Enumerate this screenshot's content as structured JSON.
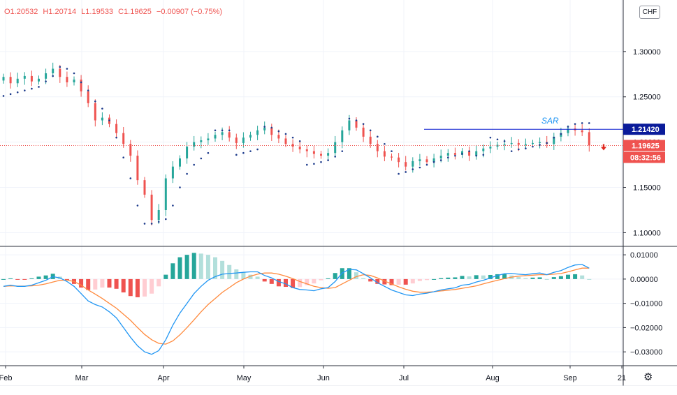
{
  "legend": {
    "open": "O1.20532",
    "high": "H1.20714",
    "low": "L1.19533",
    "close": "C1.19625",
    "change": "−0.00907 (−0.75%)"
  },
  "currency_button": "CHF",
  "settings_icon": "⚙",
  "colors": {
    "up": "#26a69a",
    "down": "#ef5350",
    "sar": "#1e3c8c",
    "line_label": "#0a1bd0",
    "macd": "#2196f3",
    "signal": "#ff8a3d",
    "hist_pos_strong": "#26a69a",
    "hist_pos_weak": "#b2dfdb",
    "hist_neg_strong": "#ef5350",
    "hist_neg_weak": "#ffcdd2"
  },
  "chart_data": [
    {
      "type": "candlestick",
      "title": "",
      "x_ticks": [
        "Feb",
        "Mar",
        "Apr",
        "May",
        "Jun",
        "Jul",
        "Aug",
        "Sep",
        "21"
      ],
      "y_ticks": [
        "1.10000",
        "1.15000",
        "1.20000",
        "1.25000",
        "1.30000"
      ],
      "ylim": [
        1.0857,
        1.3569
      ],
      "horizontal_line": {
        "value": 1.2142,
        "label": "1.21420"
      },
      "annotation": "SAR",
      "last_price": {
        "value": 1.19625,
        "label": "1.19625",
        "countdown": "08:32:56"
      },
      "closes": [
        1.272,
        1.265,
        1.27,
        1.273,
        1.267,
        1.27,
        1.276,
        1.281,
        1.272,
        1.266,
        1.269,
        1.256,
        1.243,
        1.224,
        1.227,
        1.22,
        1.21,
        1.198,
        1.185,
        1.158,
        1.142,
        1.114,
        1.125,
        1.16,
        1.173,
        1.182,
        1.195,
        1.2,
        1.202,
        1.204,
        1.208,
        1.211,
        1.205,
        1.199,
        1.205,
        1.208,
        1.213,
        1.216,
        1.208,
        1.204,
        1.198,
        1.195,
        1.192,
        1.19,
        1.187,
        1.185,
        1.188,
        1.2,
        1.213,
        1.224,
        1.216,
        1.206,
        1.198,
        1.19,
        1.184,
        1.183,
        1.178,
        1.173,
        1.179,
        1.181,
        1.178,
        1.182,
        1.185,
        1.188,
        1.186,
        1.19,
        1.185,
        1.19,
        1.193,
        1.195,
        1.197,
        1.198,
        1.199,
        1.197,
        1.198,
        1.199,
        1.2,
        1.198,
        1.206,
        1.21,
        1.215,
        1.213,
        1.211,
        1.19625
      ],
      "sar": [
        1.251,
        1.253,
        1.255,
        1.257,
        1.259,
        1.261,
        1.267,
        1.273,
        1.283,
        1.281,
        1.276,
        1.266,
        1.257,
        1.245,
        1.237,
        1.224,
        1.205,
        1.183,
        1.16,
        1.13,
        1.11,
        1.11,
        1.112,
        1.115,
        1.13,
        1.15,
        1.165,
        1.175,
        1.182,
        1.188,
        1.213,
        1.213,
        1.213,
        1.186,
        1.188,
        1.19,
        1.192,
        1.217,
        1.216,
        1.212,
        1.209,
        1.205,
        1.201,
        1.175,
        1.176,
        1.178,
        1.18,
        1.184,
        1.19,
        1.226,
        1.224,
        1.22,
        1.213,
        1.206,
        1.198,
        1.19,
        1.165,
        1.167,
        1.17,
        1.172,
        1.175,
        1.178,
        1.18,
        1.183,
        1.185,
        1.187,
        1.19,
        1.185,
        1.186,
        1.205,
        1.203,
        1.201,
        1.19,
        1.192,
        1.193,
        1.195,
        1.197,
        1.199,
        1.205,
        1.209,
        1.217,
        1.22,
        1.221,
        1.221
      ]
    },
    {
      "type": "macd",
      "title": "",
      "y_ticks": [
        "−0.03000",
        "−0.02000",
        "−0.01000",
        "0.00000",
        "0.01000"
      ],
      "ylim": [
        -0.0357,
        0.0132
      ],
      "macd": [
        -0.003,
        -0.0025,
        -0.003,
        -0.003,
        -0.0025,
        -0.0015,
        -0.0005,
        0.001,
        0.0005,
        -0.001,
        -0.003,
        -0.006,
        -0.009,
        -0.0105,
        -0.0115,
        -0.0135,
        -0.016,
        -0.02,
        -0.024,
        -0.0275,
        -0.03,
        -0.031,
        -0.0295,
        -0.025,
        -0.019,
        -0.014,
        -0.01,
        -0.006,
        -0.003,
        -0.0005,
        0.001,
        0.002,
        0.0023,
        0.0025,
        0.0028,
        0.003,
        0.003,
        0.0015,
        0.0005,
        -0.001,
        -0.002,
        -0.0035,
        -0.0043,
        -0.0045,
        -0.0048,
        -0.004,
        -0.0035,
        -0.001,
        0.0025,
        0.004,
        0.0038,
        0.0022,
        0.0005,
        -0.0015,
        -0.003,
        -0.0045,
        -0.0055,
        -0.0065,
        -0.0068,
        -0.0062,
        -0.0058,
        -0.0052,
        -0.0045,
        -0.004,
        -0.0036,
        -0.0025,
        -0.0022,
        -0.0012,
        -0.0005,
        0.0005,
        0.0015,
        0.0022,
        0.0023,
        0.002,
        0.0018,
        0.0022,
        0.0025,
        0.0018,
        0.0028,
        0.0035,
        0.0048,
        0.0058,
        0.006,
        0.0045
      ],
      "signal": [
        -0.003,
        -0.0028,
        -0.0029,
        -0.0029,
        -0.0028,
        -0.0025,
        -0.002,
        -0.0012,
        -0.0005,
        -0.0004,
        -0.001,
        -0.0025,
        -0.0045,
        -0.0062,
        -0.008,
        -0.01,
        -0.012,
        -0.0145,
        -0.017,
        -0.02,
        -0.0228,
        -0.025,
        -0.0265,
        -0.0268,
        -0.0255,
        -0.023,
        -0.02,
        -0.0168,
        -0.0135,
        -0.0105,
        -0.008,
        -0.0055,
        -0.0035,
        -0.0015,
        0.0,
        0.0012,
        0.002,
        0.0025,
        0.0025,
        0.002,
        0.0012,
        0.0002,
        -0.001,
        -0.002,
        -0.003,
        -0.0035,
        -0.0038,
        -0.0035,
        -0.002,
        -0.0005,
        0.001,
        0.0018,
        0.0015,
        0.0005,
        -0.0008,
        -0.002,
        -0.0032,
        -0.0042,
        -0.005,
        -0.0054,
        -0.0054,
        -0.0052,
        -0.0049,
        -0.0046,
        -0.0043,
        -0.0038,
        -0.0033,
        -0.0028,
        -0.002,
        -0.0012,
        -0.0005,
        0.0002,
        0.0008,
        0.0012,
        0.0014,
        0.0016,
        0.0018,
        0.0018,
        0.002,
        0.0023,
        0.003,
        0.0038,
        0.0045,
        0.0045
      ]
    }
  ]
}
